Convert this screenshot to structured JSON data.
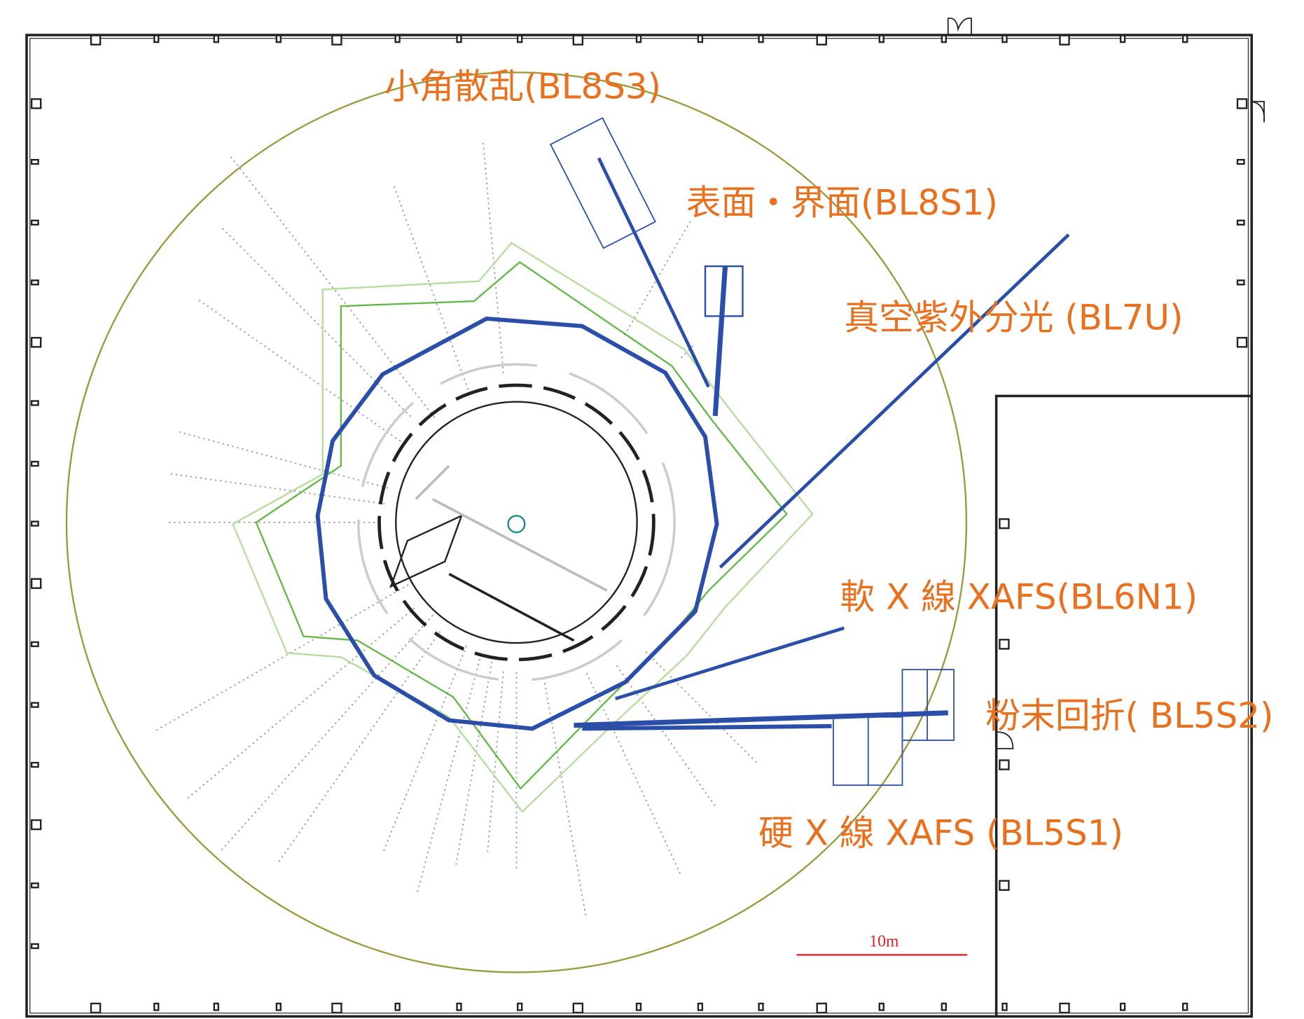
{
  "beamlines": [
    {
      "label": "小角散乱(BL8S3)"
    },
    {
      "label": "表面・界面(BL8S1)"
    },
    {
      "label": "真空紫外分光 (BL7U)"
    },
    {
      "label": "軟 X 線 XAFS(BL6N1)"
    },
    {
      "label": "粉末回折( BL5S2)"
    },
    {
      "label": "硬 X 線 XAFS (BL5S1)"
    }
  ],
  "scale_bar": {
    "label": "10m"
  }
}
